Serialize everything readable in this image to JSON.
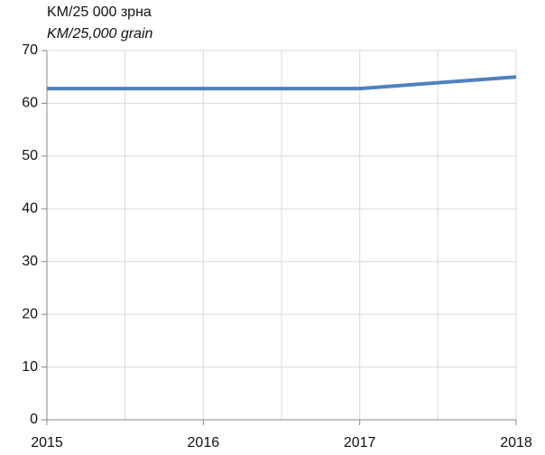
{
  "chart_data": {
    "type": "line",
    "ylabel": [
      "KM/25 000 зрна",
      "KM/25,000 grain"
    ],
    "x": [
      2015,
      2016,
      2017,
      2018
    ],
    "series": [
      {
        "color": "#4f81bd",
        "values": [
          62.8,
          62.8,
          62.8,
          65
        ]
      }
    ],
    "xlim": [
      2015,
      2018
    ],
    "xticks": [
      2015,
      2016,
      2017,
      2018
    ],
    "ylim": [
      0,
      70
    ],
    "yticks": [
      0,
      10,
      20,
      30,
      40,
      50,
      60,
      70
    ],
    "grid": true
  }
}
